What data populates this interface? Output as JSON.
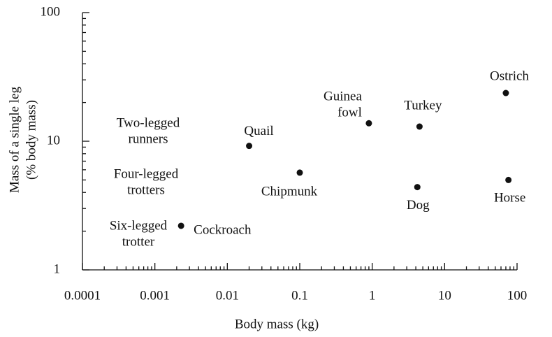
{
  "chart_data": {
    "type": "scatter",
    "x_label": "Body mass (kg)",
    "y_label": [
      "Mass of a single leg",
      "(% body mass)"
    ],
    "log_x": true,
    "log_y": true,
    "color": "#111111",
    "xlim": [
      0.0001,
      100
    ],
    "xticks": [
      0.0001,
      0.001,
      0.01,
      0.1,
      1,
      10,
      100
    ],
    "ylim": [
      1,
      100
    ],
    "yticks": [
      1,
      10,
      100
    ],
    "points": [
      {
        "label": [
          "Cockroach"
        ],
        "x": 0.0023,
        "y": 2.2
      },
      {
        "label": [
          "Quail"
        ],
        "x": 0.02,
        "y": 9.2
      },
      {
        "label": [
          "Chipmunk"
        ],
        "x": 0.1,
        "y": 5.7
      },
      {
        "label": [
          "Guinea",
          "fowl"
        ],
        "x": 0.9,
        "y": 13.8
      },
      {
        "label": [
          "Turkey"
        ],
        "x": 4.5,
        "y": 13
      },
      {
        "label": [
          "Dog"
        ],
        "x": 4.2,
        "y": 4.4
      },
      {
        "label": [
          "Ostrich"
        ],
        "x": 70,
        "y": 23.7
      },
      {
        "label": [
          "Horse"
        ],
        "x": 76,
        "y": 5
      }
    ],
    "group_labels": [
      [
        "Two-legged",
        "runners"
      ],
      [
        "Four-legged",
        "trotters"
      ],
      [
        "Six-legged",
        "trotter"
      ]
    ]
  }
}
